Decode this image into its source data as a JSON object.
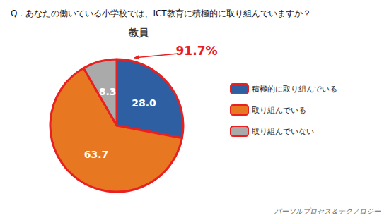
{
  "chart_data": {
    "type": "pie",
    "title": "Q．あなたの働いている小学校では、ICT教育に積極的に取り組んでいますか？",
    "subtitle": "教員",
    "categories": [
      "積極的に取り組んでいる",
      "取り組んでいる",
      "取り組んでいない"
    ],
    "values": [
      28.0,
      63.7,
      8.3
    ],
    "value_labels": [
      "28.0",
      "63.7",
      "8.3"
    ],
    "colors": [
      "#2e5fa3",
      "#e87722",
      "#aaaaaa"
    ],
    "data_labels": true,
    "legend": "right",
    "annotations": [
      {
        "text": "91.7%",
        "color": "#e82020"
      },
      {
        "text": "パーソルプロセス＆テクノロジー"
      }
    ]
  }
}
